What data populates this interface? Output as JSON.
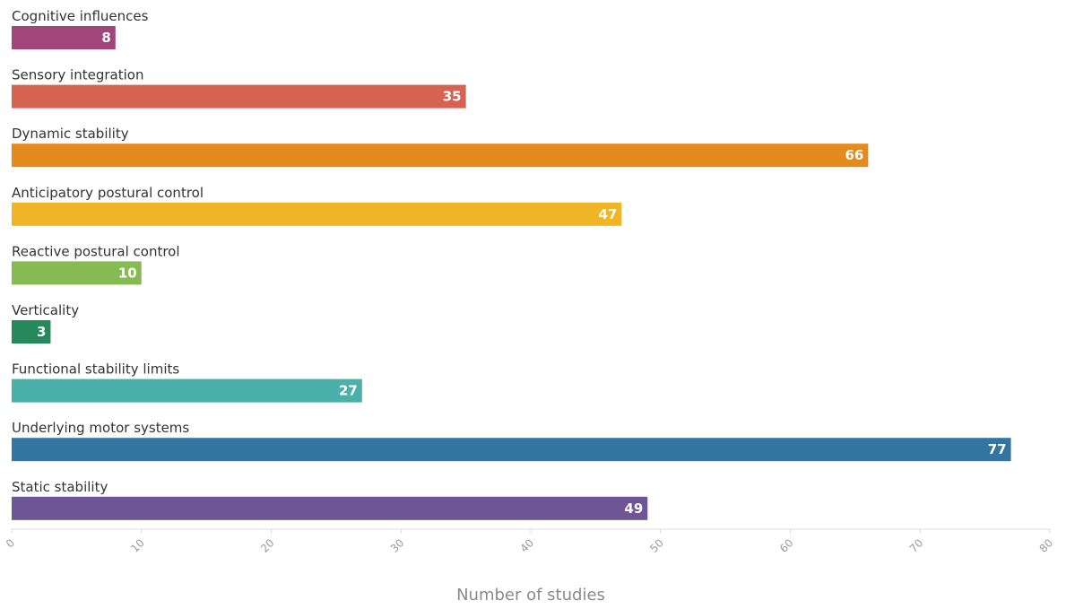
{
  "chart_data": {
    "type": "bar",
    "orientation": "horizontal",
    "title": "",
    "xlabel": "Number of studies",
    "ylabel": "",
    "xlim": [
      0,
      80
    ],
    "grid": false,
    "legend": "none",
    "x_ticks": [
      0,
      10,
      20,
      30,
      40,
      50,
      60,
      70,
      80
    ],
    "categories": [
      "Cognitive influences",
      "Sensory integration",
      "Dynamic stability",
      "Anticipatory postural control",
      "Reactive postural control",
      "Verticality",
      "Functional stability limits",
      "Underlying motor systems",
      "Static stability"
    ],
    "values": [
      8,
      35,
      66,
      47,
      10,
      3,
      27,
      77,
      49
    ],
    "colors": [
      "#a2457a",
      "#d66252",
      "#e38b1f",
      "#f0b526",
      "#86bb53",
      "#26895c",
      "#4bb0aa",
      "#3375a0",
      "#6e5595"
    ]
  }
}
